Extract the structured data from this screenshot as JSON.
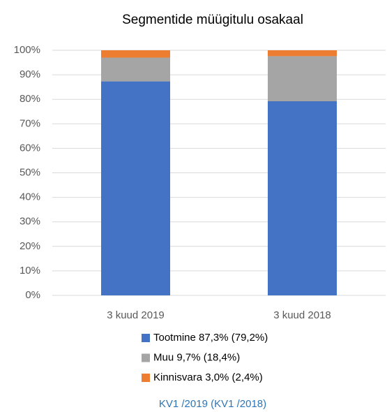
{
  "chart_data": {
    "type": "stacked_bar",
    "title": "Segmentide müügitulu osakaal",
    "categories": [
      "3 kuud 2019",
      "3 kuud 2018"
    ],
    "series": [
      {
        "name": "Tootmine 87,3% (79,2%)",
        "color": "#4472c4",
        "values": [
          87.3,
          79.2
        ]
      },
      {
        "name": "Muu 9,7% (18,4%)",
        "color": "#a5a5a5",
        "values": [
          9.7,
          18.4
        ]
      },
      {
        "name": "Kinnisvara 3,0% (2,4%)",
        "color": "#ed7d31",
        "values": [
          3.0,
          2.4
        ]
      }
    ],
    "ylim": [
      0,
      100
    ],
    "yticks": [
      {
        "value": 0,
        "label": "0%"
      },
      {
        "value": 10,
        "label": "10%"
      },
      {
        "value": 20,
        "label": "20%"
      },
      {
        "value": 30,
        "label": "30%"
      },
      {
        "value": 40,
        "label": "40%"
      },
      {
        "value": 50,
        "label": "50%"
      },
      {
        "value": 60,
        "label": "60%"
      },
      {
        "value": 70,
        "label": "70%"
      },
      {
        "value": 80,
        "label": "80%"
      },
      {
        "value": 90,
        "label": "90%"
      },
      {
        "value": 100,
        "label": "100%"
      }
    ],
    "grid": true,
    "annotation": "KV1 /2019 (KV1 /2018)"
  }
}
